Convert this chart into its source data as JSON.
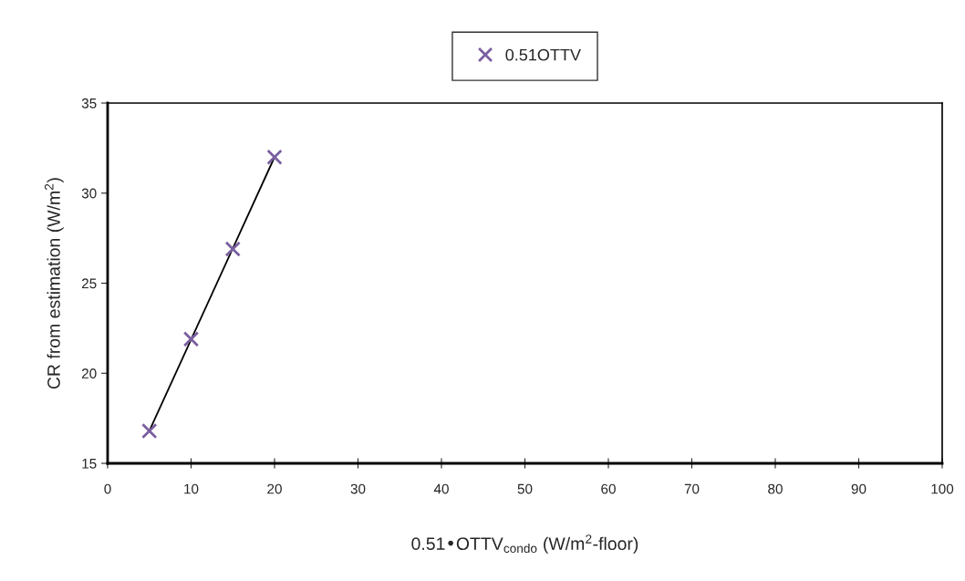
{
  "chart_data": {
    "type": "scatter",
    "xlabel": "0.51•OTTV$_{condo}$ (W/m$^{2}$-floor)",
    "ylabel": "CR from estimation (W/m$^{2}$)",
    "x": [
      5,
      10,
      15,
      20
    ],
    "series": [
      {
        "name": "0.51OTTV",
        "color": "#7a5fa0",
        "marker": "cross",
        "values": [
          16.8,
          21.9,
          26.9,
          32.0
        ]
      },
      {
        "type": "line",
        "color": "#000000",
        "marker": "none",
        "line_style": "solid",
        "x": [
          5,
          20
        ],
        "values": [
          16.8,
          32.0
        ]
      }
    ],
    "xlim": [
      0,
      100
    ],
    "xticks": [
      0,
      10,
      20,
      30,
      40,
      50,
      60,
      70,
      80,
      90,
      100
    ],
    "ylim": [
      15,
      35
    ],
    "yticks": [
      15,
      20,
      25,
      30,
      35
    ],
    "grid": false,
    "legend": "top"
  }
}
